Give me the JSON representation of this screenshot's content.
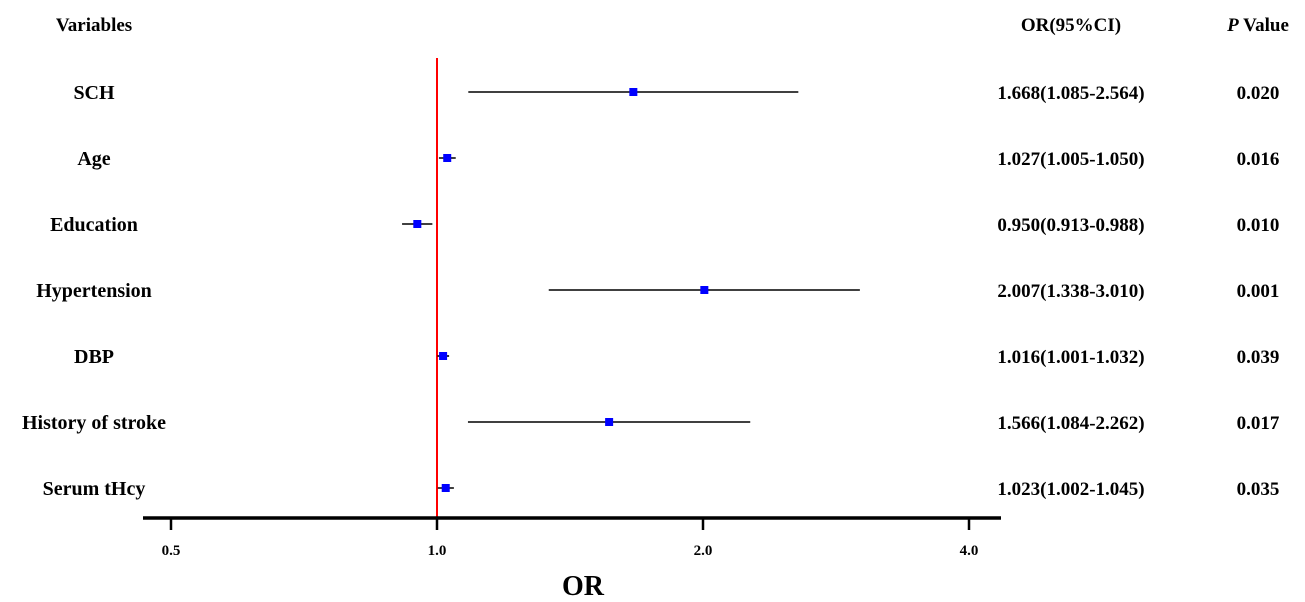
{
  "colors": {
    "reference_line": "#ff0000",
    "marker": "#0000ff",
    "ci_line": "#000000",
    "axis": "#000000"
  },
  "headers": {
    "variables": "Variables",
    "or_ci": "OR(95%CI)",
    "p_italic": "P",
    "p_rest": " Value"
  },
  "chart_data": {
    "type": "forest",
    "scale": "log2",
    "xlabel": "OR",
    "xlim": [
      0.45,
      4.4
    ],
    "reference_value": 1.0,
    "ticks": [
      {
        "value": 0.5,
        "label": "0.5"
      },
      {
        "value": 1.0,
        "label": "1.0"
      },
      {
        "value": 2.0,
        "label": "2.0"
      },
      {
        "value": 4.0,
        "label": "4.0"
      }
    ],
    "rows": [
      {
        "variable": "SCH",
        "or": 1.668,
        "lower": 1.085,
        "upper": 2.564,
        "or_text": "1.668(1.085-2.564)",
        "p_text": "0.020"
      },
      {
        "variable": "Age",
        "or": 1.027,
        "lower": 1.005,
        "upper": 1.05,
        "or_text": "1.027(1.005-1.050)",
        "p_text": "0.016"
      },
      {
        "variable": "Education",
        "or": 0.95,
        "lower": 0.913,
        "upper": 0.988,
        "or_text": "0.950(0.913-0.988)",
        "p_text": "0.010"
      },
      {
        "variable": "Hypertension",
        "or": 2.007,
        "lower": 1.338,
        "upper": 3.01,
        "or_text": "2.007(1.338-3.010)",
        "p_text": "0.001"
      },
      {
        "variable": "DBP",
        "or": 1.016,
        "lower": 1.001,
        "upper": 1.032,
        "or_text": "1.016(1.001-1.032)",
        "p_text": "0.039"
      },
      {
        "variable": "History of stroke",
        "or": 1.566,
        "lower": 1.084,
        "upper": 2.262,
        "or_text": "1.566(1.084-2.262)",
        "p_text": "0.017"
      },
      {
        "variable": "Serum tHcy",
        "or": 1.023,
        "lower": 1.002,
        "upper": 1.045,
        "or_text": "1.023(1.002-1.045)",
        "p_text": "0.035"
      }
    ]
  }
}
